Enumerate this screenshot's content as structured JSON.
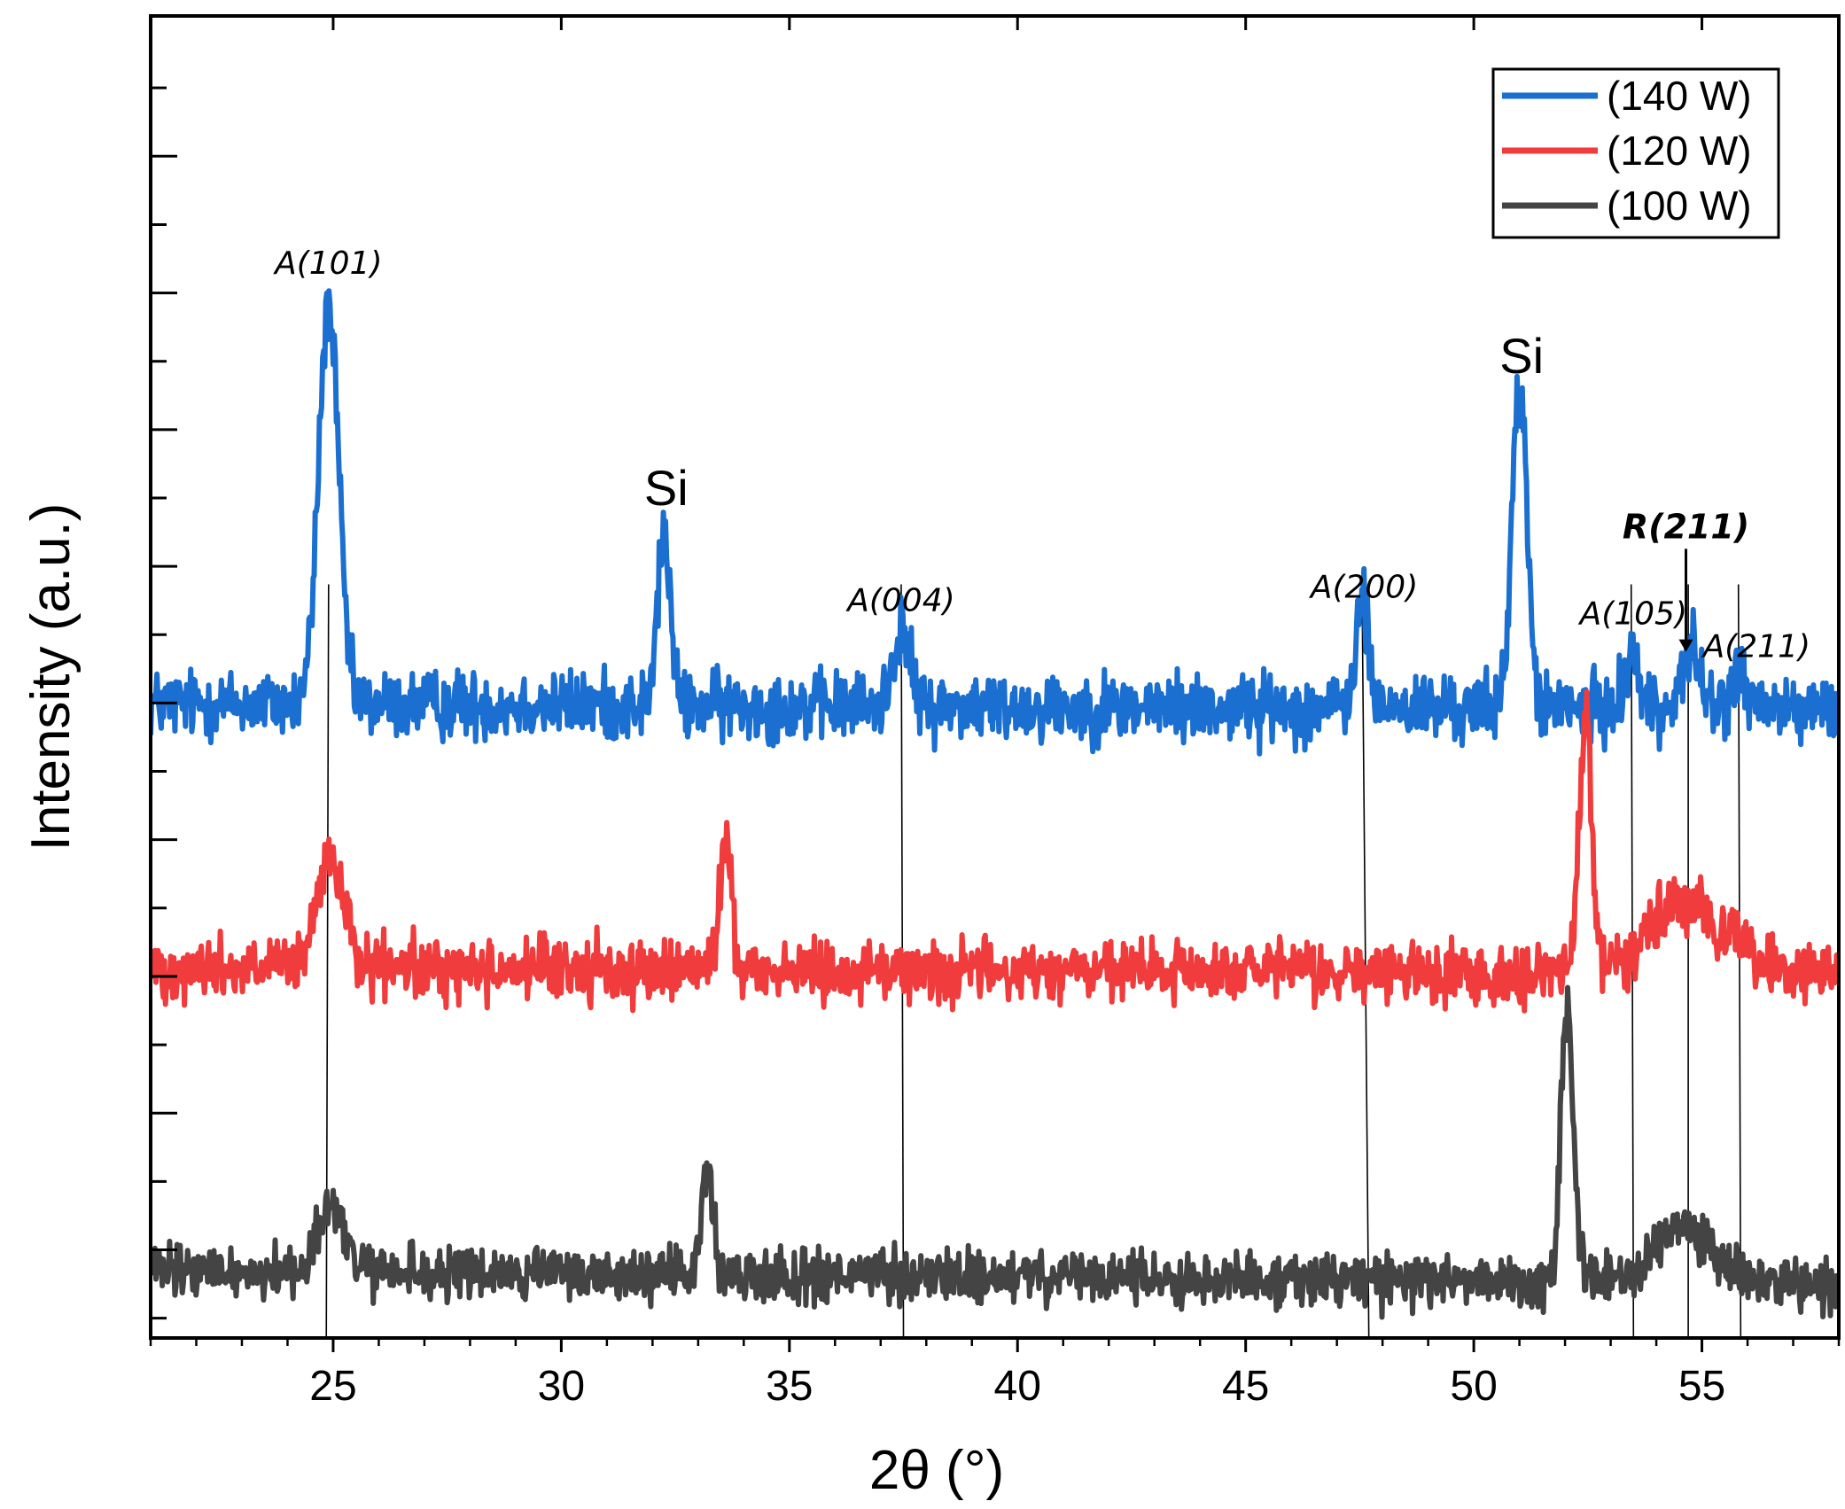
{
  "chart_data": {
    "type": "line",
    "xlabel": "2θ (°)",
    "ylabel": "Intensity (a.u.)",
    "xlim": [
      21,
      58
    ],
    "ylim": [
      0,
      100
    ],
    "x_ticks": [
      25,
      30,
      35,
      40,
      45,
      50,
      55
    ],
    "legend": {
      "placement": "top-right"
    },
    "series": [
      {
        "name": "(140 W)",
        "color": "#1a6fd0",
        "baseline": 48,
        "end_baseline": 47.5,
        "noise": 2.6,
        "peaks": [
          {
            "x": 24.9,
            "height": 30,
            "width": 0.22
          },
          {
            "x": 32.25,
            "height": 13,
            "width": 0.14
          },
          {
            "x": 37.45,
            "height": 6,
            "width": 0.18
          },
          {
            "x": 47.55,
            "height": 8,
            "width": 0.14
          },
          {
            "x": 51.0,
            "height": 24,
            "width": 0.17
          },
          {
            "x": 53.45,
            "height": 4.5,
            "width": 0.15
          },
          {
            "x": 54.75,
            "height": 4.5,
            "width": 0.2
          },
          {
            "x": 55.8,
            "height": 3,
            "width": 0.15
          }
        ]
      },
      {
        "name": "(120 W)",
        "color": "#f03c3c",
        "baseline": 28,
        "end_baseline": 27.5,
        "noise": 2.3,
        "peaks": [
          {
            "x": 24.95,
            "height": 8,
            "width": 0.3
          },
          {
            "x": 33.6,
            "height": 10,
            "width": 0.13
          },
          {
            "x": 52.45,
            "height": 19,
            "width": 0.14
          },
          {
            "x": 54.7,
            "height": 5,
            "width": 0.9
          }
        ]
      },
      {
        "name": "(100 W)",
        "color": "#444444",
        "baseline": 5,
        "end_baseline": 4.2,
        "noise": 2.0,
        "peaks": [
          {
            "x": 24.95,
            "height": 5,
            "width": 0.3
          },
          {
            "x": 33.2,
            "height": 8,
            "width": 0.12
          },
          {
            "x": 52.05,
            "height": 20,
            "width": 0.14
          },
          {
            "x": 54.6,
            "height": 4,
            "width": 0.6
          }
        ]
      }
    ],
    "reference_lines": [
      {
        "x_top": 24.9,
        "x_bottom": 24.85
      },
      {
        "x_top": 37.45,
        "x_bottom": 37.5
      },
      {
        "x_top": 47.55,
        "x_bottom": 47.7
      },
      {
        "x_top": 53.45,
        "x_bottom": 53.5
      },
      {
        "x_top": 54.7,
        "x_bottom": 54.7
      },
      {
        "x_top": 55.8,
        "x_bottom": 55.85
      }
    ],
    "annotations": [
      {
        "text": "A(101)",
        "x": 24.9,
        "y": 80.5,
        "style": "peak"
      },
      {
        "text": "Si",
        "x": 32.3,
        "y": 63,
        "style": "si"
      },
      {
        "text": "A(004)",
        "x": 37.45,
        "y": 55,
        "style": "peak"
      },
      {
        "text": "A(200)",
        "x": 47.6,
        "y": 56,
        "style": "peak"
      },
      {
        "text": "Si",
        "x": 51.05,
        "y": 73,
        "style": "si"
      },
      {
        "text": "A(105)",
        "x": 53.5,
        "y": 54,
        "style": "peak"
      },
      {
        "text": "R(211)",
        "x": 54.65,
        "y": 60.5,
        "style": "bold"
      },
      {
        "text": "A(211)",
        "x": 56.2,
        "y": 51.5,
        "style": "peak"
      }
    ]
  }
}
